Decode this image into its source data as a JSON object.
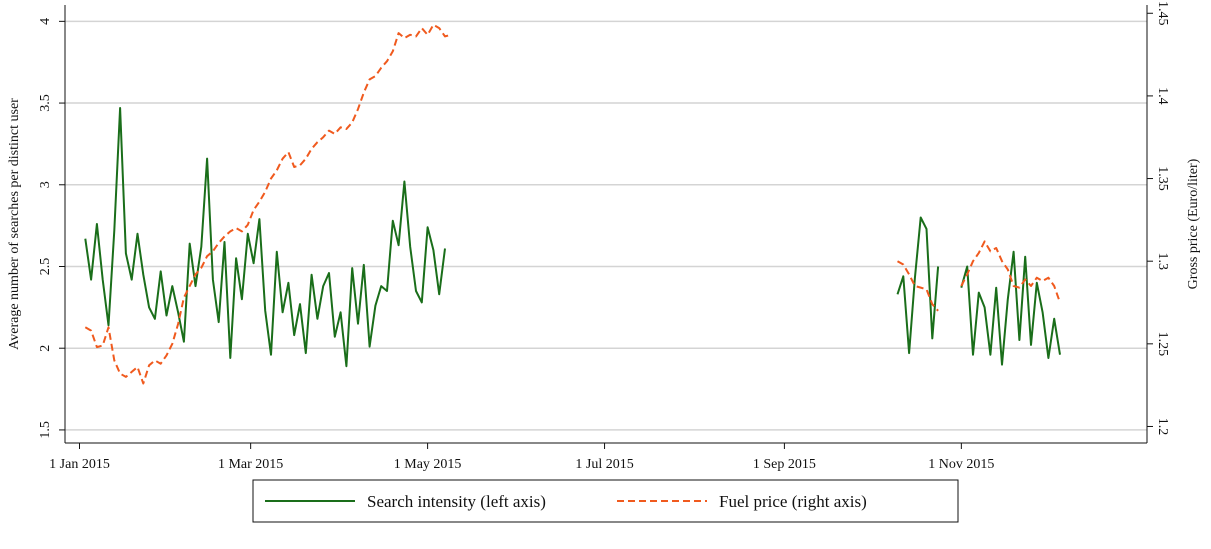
{
  "chart_data": {
    "type": "line",
    "x": [
      "2015-01-03",
      "2015-01-05",
      "2015-01-07",
      "2015-01-09",
      "2015-01-11",
      "2015-01-13",
      "2015-01-15",
      "2015-01-17",
      "2015-01-19",
      "2015-01-21",
      "2015-01-23",
      "2015-01-25",
      "2015-01-27",
      "2015-01-29",
      "2015-01-31",
      "2015-02-02",
      "2015-02-04",
      "2015-02-06",
      "2015-02-08",
      "2015-02-10",
      "2015-02-12",
      "2015-02-14",
      "2015-02-16",
      "2015-02-18",
      "2015-02-20",
      "2015-02-22",
      "2015-02-24",
      "2015-02-26",
      "2015-02-28",
      "2015-03-02",
      "2015-03-04",
      "2015-03-06",
      "2015-03-08",
      "2015-03-10",
      "2015-03-12",
      "2015-03-14",
      "2015-03-16",
      "2015-03-18",
      "2015-03-20",
      "2015-03-22",
      "2015-03-24",
      "2015-03-26",
      "2015-03-28",
      "2015-03-30",
      "2015-04-01",
      "2015-04-03",
      "2015-04-05",
      "2015-04-07",
      "2015-04-09",
      "2015-04-11",
      "2015-04-13",
      "2015-04-15",
      "2015-04-17",
      "2015-04-19",
      "2015-04-21",
      "2015-04-23",
      "2015-04-25",
      "2015-04-27",
      "2015-04-29",
      "2015-05-01",
      "2015-05-03",
      "2015-05-05",
      "2015-05-07",
      "2015-05-09",
      "2015-07-01",
      "2015-10-10",
      "2015-10-12",
      "2015-10-14",
      "2015-10-16",
      "2015-10-18",
      "2015-10-20",
      "2015-10-22",
      "2015-10-24",
      "2015-10-28",
      "2015-11-01",
      "2015-11-03",
      "2015-11-05",
      "2015-11-07",
      "2015-11-09",
      "2015-11-11",
      "2015-11-13",
      "2015-11-15",
      "2015-11-17",
      "2015-11-19",
      "2015-11-21",
      "2015-11-23",
      "2015-11-25",
      "2015-11-27",
      "2015-11-29",
      "2015-12-01",
      "2015-12-03",
      "2015-12-05"
    ],
    "series": [
      {
        "name": "Search intensity (left axis)",
        "color": "#1a6e1a",
        "line_style": "solid",
        "axis": "y",
        "values": [
          2.67,
          2.42,
          2.76,
          2.42,
          2.14,
          2.72,
          3.47,
          2.58,
          2.42,
          2.7,
          2.45,
          2.25,
          2.18,
          2.47,
          2.2,
          2.38,
          2.22,
          2.04,
          2.64,
          2.38,
          2.62,
          3.16,
          2.42,
          2.16,
          2.65,
          1.94,
          2.55,
          2.3,
          2.7,
          2.52,
          2.79,
          2.23,
          1.96,
          2.59,
          2.22,
          2.4,
          2.08,
          2.27,
          1.97,
          2.45,
          2.18,
          2.38,
          2.46,
          2.07,
          2.22,
          1.89,
          2.49,
          2.15,
          2.51,
          2.01,
          2.26,
          2.38,
          2.35,
          2.78,
          2.63,
          3.02,
          2.62,
          2.35,
          2.28,
          2.74,
          2.6,
          2.33,
          2.61,
          null,
          null,
          2.33,
          2.44,
          1.97,
          2.43,
          2.8,
          2.73,
          2.06,
          2.5,
          null,
          2.37,
          2.5,
          1.96,
          2.34,
          2.25,
          1.96,
          2.37,
          1.9,
          2.3,
          2.59,
          2.05,
          2.56,
          2.02,
          2.4,
          2.22,
          1.94,
          2.18,
          1.96
        ]
      },
      {
        "name": "Fuel price (right axis)",
        "color": "#f05a1e",
        "line_style": "dashed",
        "axis": "y2",
        "values": [
          1.26,
          1.258,
          1.248,
          1.249,
          1.26,
          1.24,
          1.232,
          1.23,
          1.233,
          1.236,
          1.226,
          1.237,
          1.24,
          1.238,
          1.243,
          1.25,
          1.262,
          1.278,
          1.285,
          1.292,
          1.296,
          1.303,
          1.306,
          1.311,
          1.315,
          1.318,
          1.32,
          1.318,
          1.322,
          1.331,
          1.336,
          1.342,
          1.35,
          1.355,
          1.362,
          1.366,
          1.357,
          1.358,
          1.362,
          1.368,
          1.372,
          1.375,
          1.379,
          1.377,
          1.381,
          1.38,
          1.384,
          1.392,
          1.402,
          1.41,
          1.412,
          1.417,
          1.421,
          1.427,
          1.438,
          1.435,
          1.437,
          1.436,
          1.441,
          1.437,
          1.443,
          1.441,
          1.436,
          1.437,
          null,
          1.3,
          1.298,
          1.292,
          1.285,
          1.284,
          1.283,
          1.274,
          1.27,
          null,
          1.285,
          1.292,
          1.3,
          1.305,
          1.312,
          1.306,
          1.308,
          1.3,
          1.295,
          1.285,
          1.284,
          1.289,
          1.285,
          1.29,
          1.288,
          1.29,
          1.285,
          1.275
        ]
      }
    ],
    "xlim": [
      "2014-12-27",
      "2016-01-04"
    ],
    "xticks": [
      {
        "value": "2015-01-01",
        "label": "1 Jan 2015"
      },
      {
        "value": "2015-03-01",
        "label": "1 Mar 2015"
      },
      {
        "value": "2015-05-01",
        "label": "1 May 2015"
      },
      {
        "value": "2015-07-01",
        "label": "1 Jul 2015"
      },
      {
        "value": "2015-09-01",
        "label": "1 Sep 2015"
      },
      {
        "value": "2015-11-01",
        "label": "1 Nov 2015"
      }
    ],
    "ylim": [
      1.42,
      4.1
    ],
    "yticks": [
      1.5,
      2,
      2.5,
      3,
      3.5,
      4
    ],
    "y2lim": [
      1.19,
      1.455
    ],
    "y2ticks": [
      1.2,
      1.25,
      1.3,
      1.35,
      1.4,
      1.45
    ],
    "ylabel": "Average number of searches per distinct user",
    "y2label": "Gross price (Euro/liter)",
    "grid": true,
    "legend": "bottom"
  }
}
